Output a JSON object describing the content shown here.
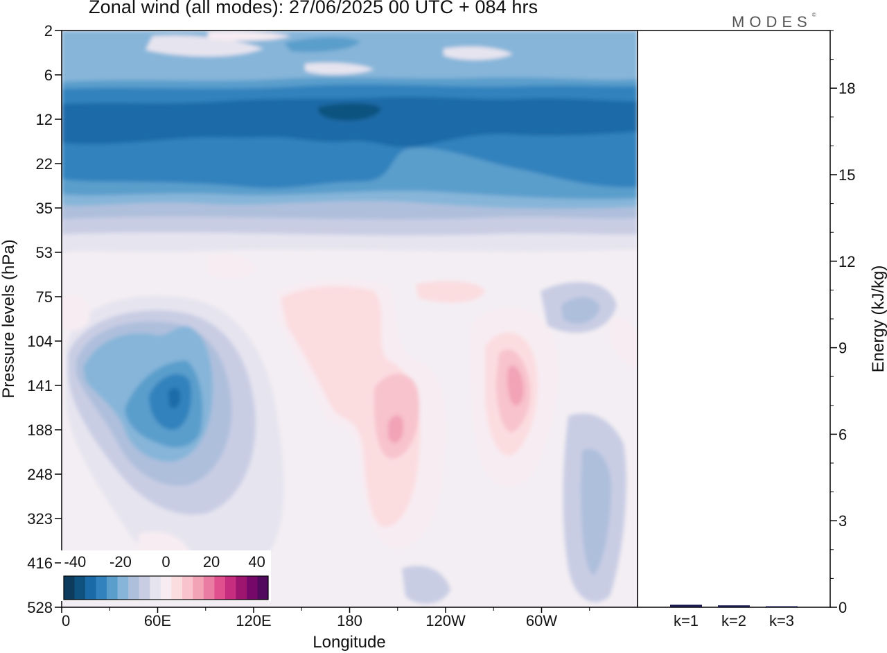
{
  "title": "Zonal wind (all modes):  27/06/2025  00 UTC  + 084 hrs",
  "logo": {
    "text": "MODES",
    "mark": "©"
  },
  "chart_data": [
    {
      "type": "heatmap",
      "title": "Zonal wind (all modes):  27/06/2025  00 UTC  + 084 hrs",
      "xlabel": "Longitude",
      "ylabel": "Pressure levels (hPa)",
      "x_ticks": [
        "0",
        "60E",
        "120E",
        "180",
        "120W",
        "60W"
      ],
      "y_ticks": [
        "2",
        "6",
        "12",
        "22",
        "35",
        "53",
        "75",
        "104",
        "141",
        "188",
        "248",
        "323",
        "416",
        "528"
      ],
      "y_direction": "pressure increases downward",
      "colorbar": {
        "placement": "bottom-left inset",
        "tick_labels": [
          "-40",
          "-20",
          "0",
          "20",
          "40"
        ],
        "range": [
          -45,
          45
        ],
        "step": 5,
        "colors": [
          "#0d3b5e",
          "#10527f",
          "#1a6aa8",
          "#3182bd",
          "#5a9ecc",
          "#86b5d9",
          "#aebfdc",
          "#c9cde4",
          "#e6e4ef",
          "#f7ecf2",
          "#fbdde0",
          "#f8c3cc",
          "#f2a3b6",
          "#ea7ca3",
          "#e0508f",
          "#c72d7e",
          "#9e1570",
          "#76086a",
          "#520a5e"
        ]
      },
      "regions": [
        {
          "feature": "upper stratospheric easterlies, levels 2-35 hPa, all longitudes",
          "value_range": [
            -35,
            -5
          ]
        },
        {
          "feature": "strongest easterly band near 12 hPa",
          "value_range": [
            -35,
            -30
          ]
        },
        {
          "feature": "easterly core near 60E-75E, 141 hPa",
          "value_range": [
            -30,
            -25
          ]
        },
        {
          "feature": "westerly maximum near 160W, 188 hPa",
          "value_range": [
            10,
            15
          ]
        },
        {
          "feature": "westerly maximum near 75W, 141 hPa",
          "value_range": [
            10,
            15
          ]
        },
        {
          "feature": "weak easterlies in troposphere near 120E and 30W",
          "value_range": [
            -15,
            -5
          ]
        }
      ],
      "grid": false
    },
    {
      "type": "bar",
      "ylabel": "Energy (kJ/kg)",
      "categories": [
        "k=1",
        "k=2",
        "k=3"
      ],
      "values": [
        0.05,
        0.03,
        0.0
      ],
      "ylim": [
        0,
        20
      ],
      "y_ticks": [
        "0",
        "3",
        "6",
        "9",
        "12",
        "15",
        "18"
      ],
      "y_axis_side": "right"
    }
  ]
}
